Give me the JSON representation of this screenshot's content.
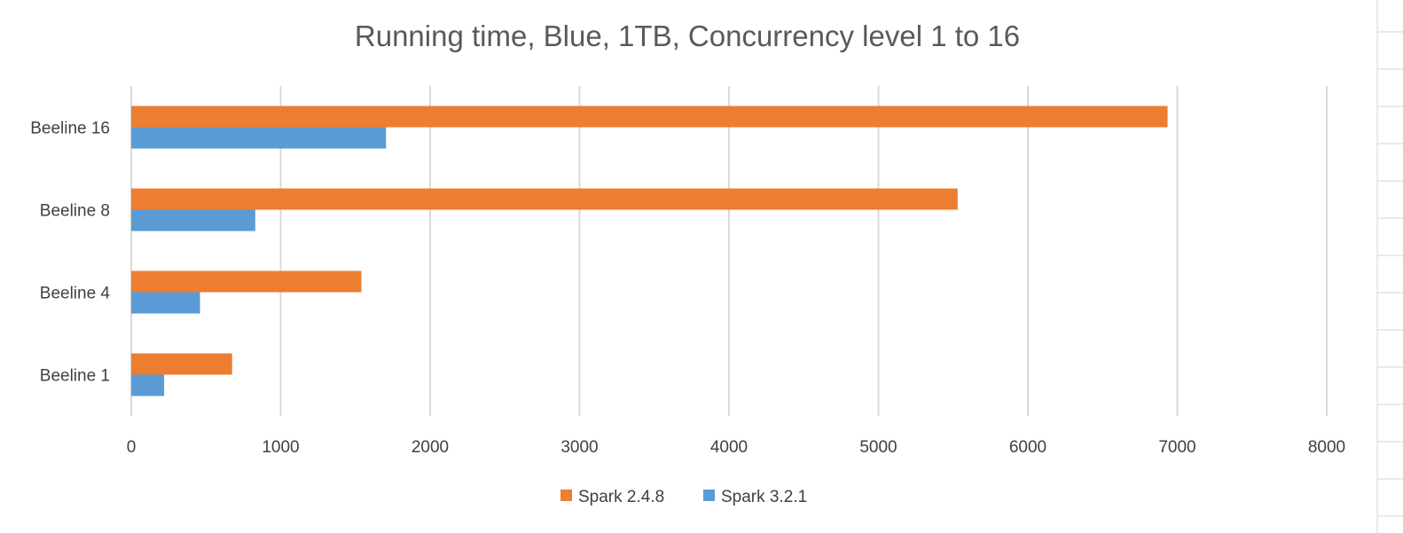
{
  "chart_data": {
    "type": "bar",
    "orientation": "horizontal",
    "title": "Running time, Blue, 1TB, Concurrency level 1 to 16",
    "categories": [
      "Beeline 1",
      "Beeline 4",
      "Beeline 8",
      "Beeline 16"
    ],
    "series": [
      {
        "name": "Spark 2.4.8",
        "color": "#ED7D31",
        "values": [
          675,
          1540,
          5530,
          6935
        ]
      },
      {
        "name": "Spark 3.2.1",
        "color": "#5B9BD5",
        "values": [
          220,
          460,
          830,
          1705
        ]
      }
    ],
    "xlim": [
      0,
      8000
    ],
    "xticks": [
      "0",
      "1000",
      "2000",
      "3000",
      "4000",
      "5000",
      "6000",
      "7000",
      "8000"
    ],
    "grid": true,
    "legend": "bottom"
  }
}
